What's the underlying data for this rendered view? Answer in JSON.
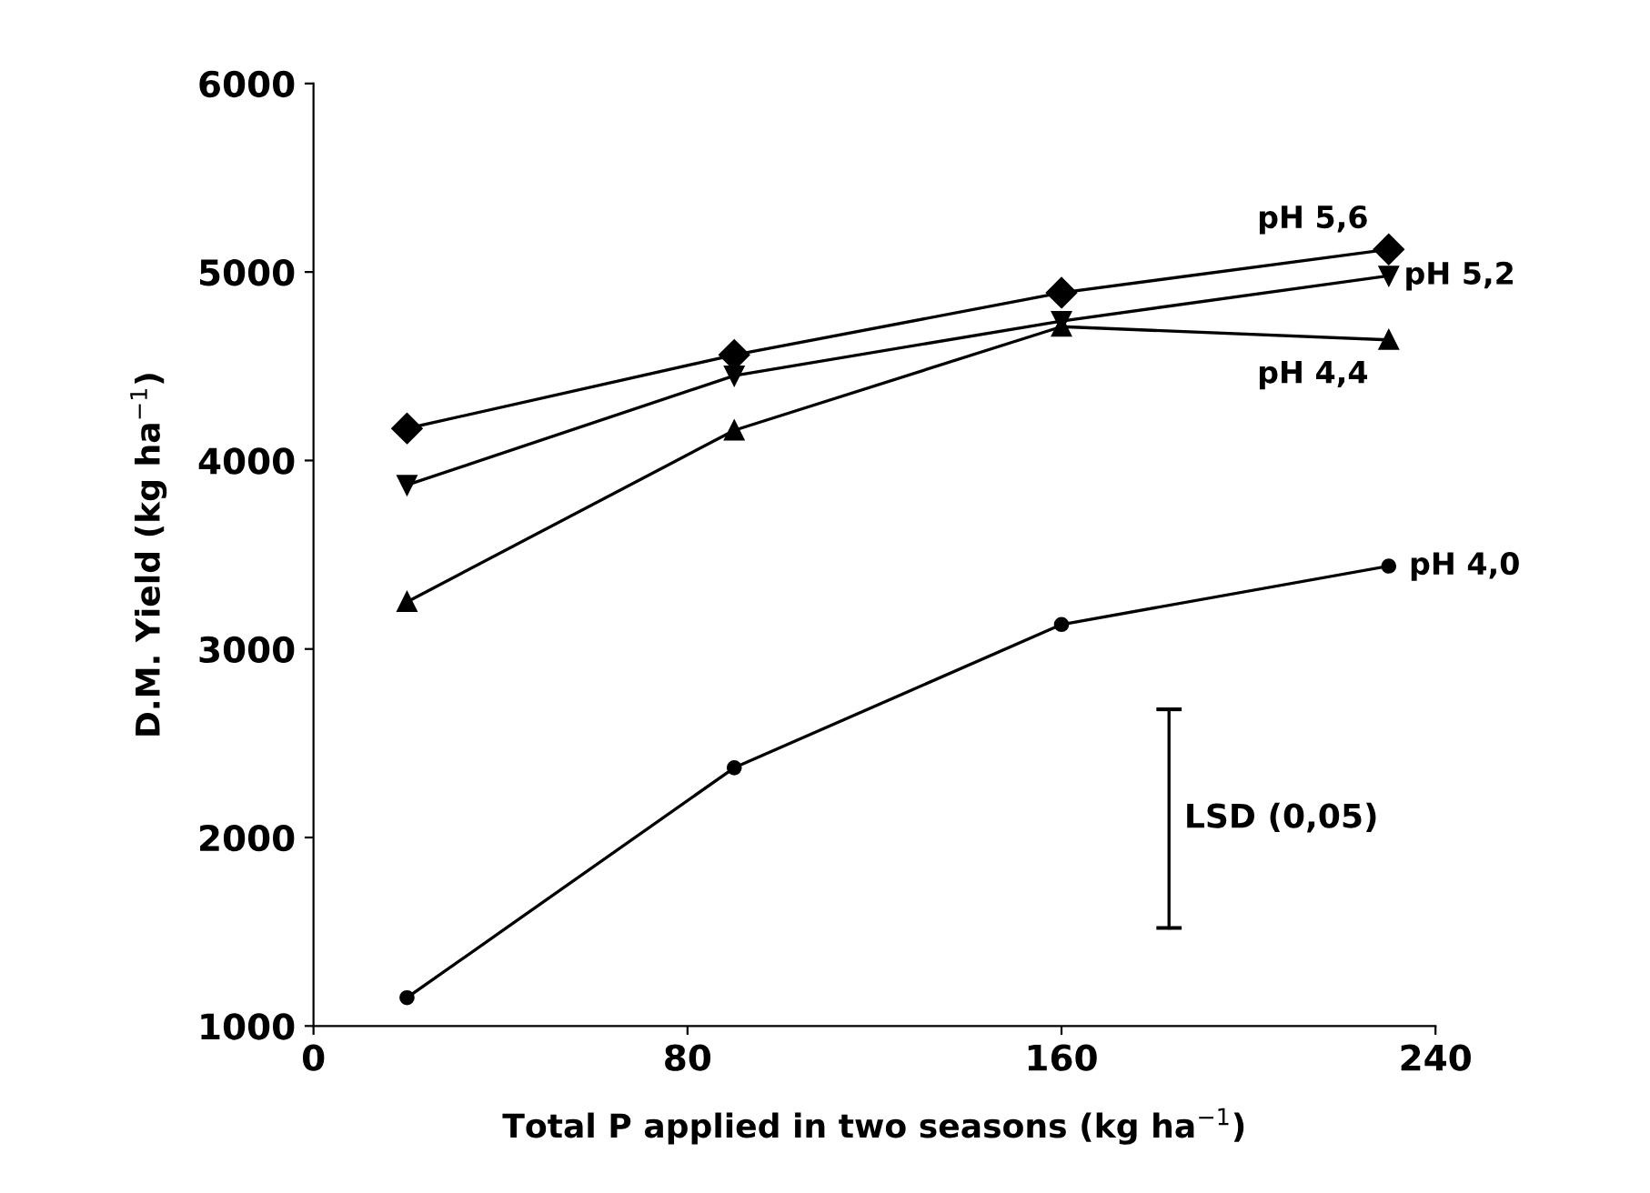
{
  "chart_data": {
    "type": "line",
    "xlabel": "Total P applied in two seasons (kg ha$^{−1}$)",
    "ylabel": "D.M. Yield (kg ha$^{−1}$)",
    "x": [
      20,
      90,
      160,
      230
    ],
    "series": [
      {
        "name": "pH 5,6",
        "color": "#000000",
        "marker": "diamond",
        "values": [
          4170,
          4560,
          4890,
          5120
        ]
      },
      {
        "name": "pH 5,2",
        "color": "#000000",
        "marker": "triangle_down",
        "values": [
          3870,
          4450,
          4740,
          4980
        ]
      },
      {
        "name": "pH 4,4",
        "color": "#000000",
        "marker": "triangle",
        "values": [
          3250,
          4160,
          4710,
          4640
        ]
      },
      {
        "name": "pH 4,0",
        "color": "#000000",
        "marker": "circle",
        "values": [
          1150,
          2370,
          3130,
          3440
        ]
      },
      {
        "type": "line",
        "color": "#000000",
        "marker": "none",
        "x": [
          183,
          183
        ],
        "values": [
          1520,
          2680
        ]
      }
    ],
    "annotations": [
      {
        "text": "LSD (0,05)",
        "x": 183,
        "y": 2100
      }
    ],
    "xlim": [
      0,
      240
    ],
    "xticks": [
      0,
      80,
      160,
      240
    ],
    "ylim": [
      1000,
      6000
    ],
    "yticks": [
      1000,
      2000,
      3000,
      4000,
      5000,
      6000
    ],
    "grid": false,
    "legend": false,
    "line_style": "solid"
  }
}
